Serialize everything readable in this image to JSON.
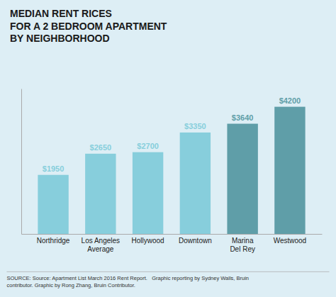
{
  "chart_data": {
    "type": "bar",
    "title": "MEDIAN RENT RICES\nFOR A 2 BEDROOM APARTMENT\nBY NEIGHBORHOOD",
    "categories": [
      "Northridge",
      "Los Angeles\nAverage",
      "Hollywood",
      "Downtown",
      "Marina\nDel Rey",
      "Westwood"
    ],
    "values": [
      1950,
      2650,
      2700,
      3350,
      3640,
      4200
    ],
    "value_labels": [
      "$1950",
      "$2650",
      "$2700",
      "$3350",
      "$3640",
      "$4200"
    ],
    "data_labels": true,
    "colors": [
      "#87cedc",
      "#87cedc",
      "#87cedc",
      "#87cedc",
      "#5f9ea8",
      "#5f9ea8"
    ],
    "ylim": [
      0,
      4800
    ],
    "tick_labels": "x",
    "grid": false,
    "annotations": [
      "SOURCE: Source: Apartment List March 2016 Rent Report.   Graphic reporting by Sydney Walls, Bruin\ncontributor. Graphic by Rong Zhang, Bruin Contributor."
    ]
  }
}
